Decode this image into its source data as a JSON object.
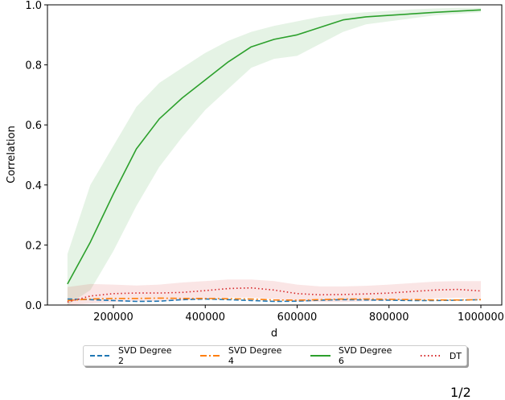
{
  "chart_data": {
    "type": "line",
    "title": "",
    "xlabel": "d",
    "ylabel": "Correlation",
    "xlim": [
      100000,
      1000000
    ],
    "ylim": [
      0.0,
      1.0
    ],
    "x_ticks": [
      "200000",
      "400000",
      "600000",
      "800000",
      "1000000"
    ],
    "y_ticks": [
      "0.0",
      "0.2",
      "0.4",
      "0.6",
      "0.8",
      "1.0"
    ],
    "grid": false,
    "legend_position": "below plot, horizontal",
    "x": [
      100000,
      150000,
      200000,
      250000,
      300000,
      350000,
      400000,
      450000,
      500000,
      550000,
      600000,
      650000,
      700000,
      750000,
      800000,
      850000,
      900000,
      950000,
      1000000
    ],
    "series": [
      {
        "name": "SVD Degree 2",
        "color": "#1f77b4",
        "style": "dashed",
        "values": [
          0.02,
          0.018,
          0.015,
          0.012,
          0.013,
          0.018,
          0.02,
          0.018,
          0.015,
          0.012,
          0.013,
          0.016,
          0.018,
          0.017,
          0.016,
          0.015,
          0.015,
          0.016,
          0.018
        ]
      },
      {
        "name": "SVD Degree 4",
        "color": "#ff7f0e",
        "style": "dashdot",
        "values": [
          0.015,
          0.02,
          0.022,
          0.022,
          0.023,
          0.022,
          0.022,
          0.021,
          0.02,
          0.017,
          0.016,
          0.018,
          0.02,
          0.02,
          0.019,
          0.018,
          0.017,
          0.017,
          0.018
        ]
      },
      {
        "name": "SVD Degree 6",
        "color": "#2ca02c",
        "style": "solid",
        "values": [
          0.07,
          0.21,
          0.37,
          0.52,
          0.62,
          0.69,
          0.75,
          0.81,
          0.86,
          0.885,
          0.9,
          0.925,
          0.95,
          0.96,
          0.965,
          0.97,
          0.975,
          0.979,
          0.983
        ],
        "band_lower": [
          0.0,
          0.05,
          0.18,
          0.33,
          0.46,
          0.56,
          0.65,
          0.72,
          0.79,
          0.82,
          0.83,
          0.87,
          0.91,
          0.935,
          0.945,
          0.955,
          0.965,
          0.97,
          0.975
        ],
        "band_upper": [
          0.17,
          0.4,
          0.53,
          0.66,
          0.74,
          0.79,
          0.84,
          0.88,
          0.91,
          0.93,
          0.945,
          0.96,
          0.97,
          0.975,
          0.98,
          0.985,
          0.988,
          0.99,
          0.99
        ]
      },
      {
        "name": "DT",
        "color": "#d62728",
        "style": "dotted",
        "values": [
          0.01,
          0.03,
          0.038,
          0.04,
          0.04,
          0.042,
          0.048,
          0.055,
          0.057,
          0.05,
          0.038,
          0.034,
          0.035,
          0.037,
          0.04,
          0.045,
          0.05,
          0.052,
          0.047
        ],
        "band_lower": [
          0.0,
          0.005,
          0.01,
          0.012,
          0.012,
          0.015,
          0.02,
          0.025,
          0.025,
          0.02,
          0.012,
          0.01,
          0.01,
          0.012,
          0.015,
          0.018,
          0.022,
          0.024,
          0.02
        ],
        "band_upper": [
          0.06,
          0.07,
          0.068,
          0.065,
          0.068,
          0.075,
          0.08,
          0.085,
          0.085,
          0.08,
          0.068,
          0.062,
          0.062,
          0.064,
          0.068,
          0.073,
          0.078,
          0.08,
          0.08
        ]
      }
    ]
  },
  "legend": {
    "items": [
      {
        "label": "SVD Degree 2",
        "color": "#1f77b4",
        "dash": "6,3"
      },
      {
        "label": "SVD Degree 4",
        "color": "#ff7f0e",
        "dash": "8,3,2,3"
      },
      {
        "label": "SVD Degree 6",
        "color": "#2ca02c",
        "dash": ""
      },
      {
        "label": "DT",
        "color": "#d62728",
        "dash": "1.5,3"
      }
    ]
  },
  "footer": {
    "page_number": "1/2"
  }
}
